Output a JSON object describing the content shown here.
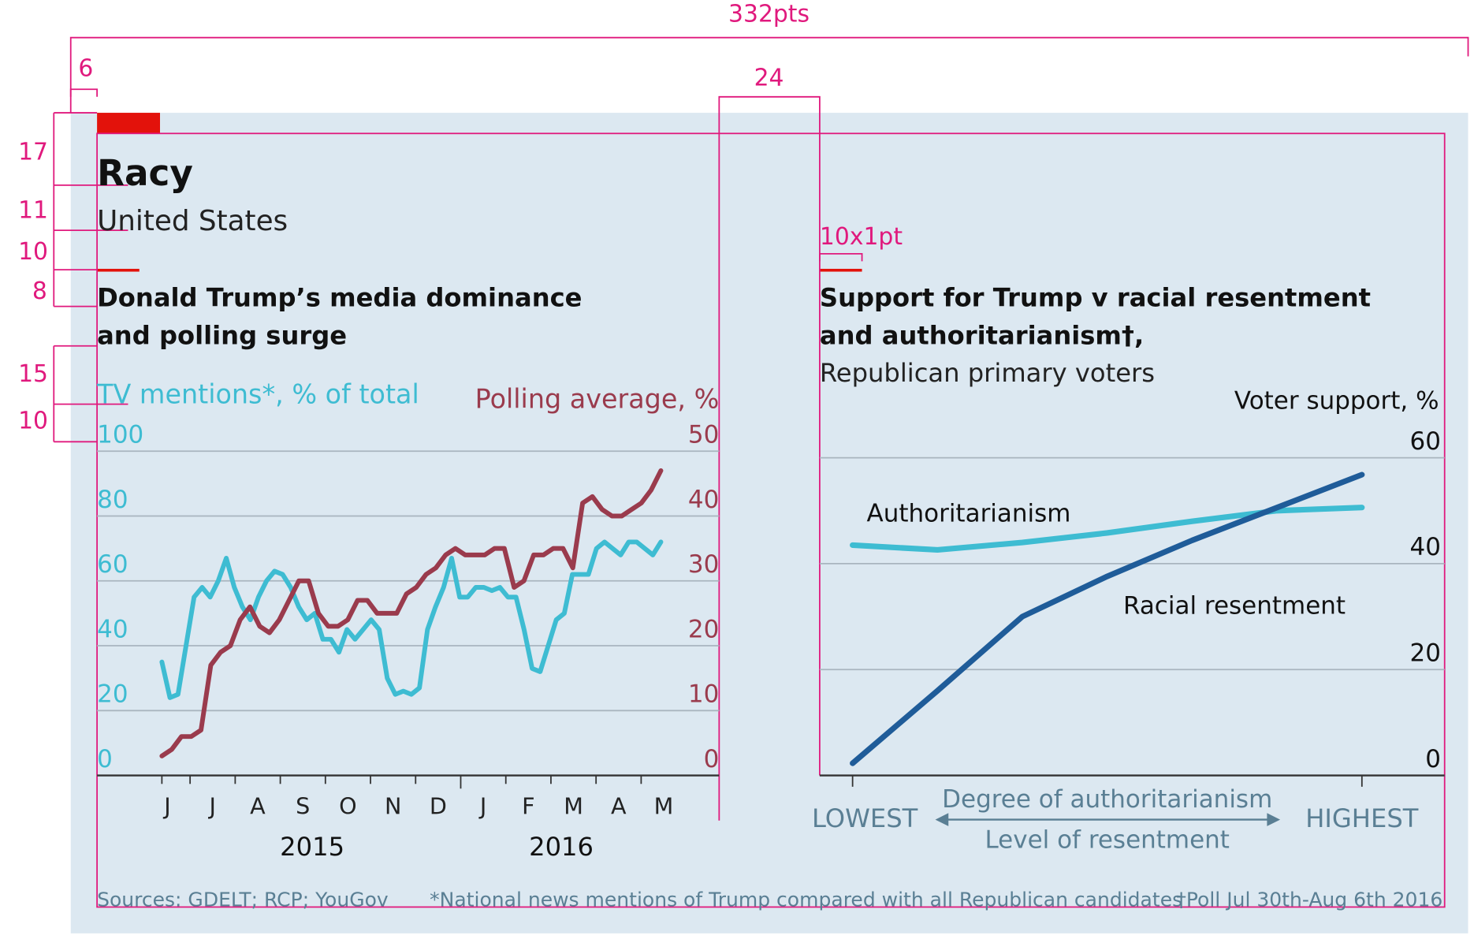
{
  "header": {
    "title": "Racy",
    "subtitle": "United States"
  },
  "annotations": [
    "332pts",
    "6",
    "24",
    "17",
    "11",
    "10",
    "8",
    "15",
    "10",
    "10x1pt"
  ],
  "footer": {
    "sources": "Sources: GDELT; RCP; YouGov",
    "note": "*National news mentions of Trump compared with all Republican candidates",
    "note2": "†Poll Jul 30th-Aug 6th 2016"
  },
  "chart_data": [
    {
      "type": "line",
      "title": [
        "Donald Trump’s media dominance",
        "and polling surge"
      ],
      "ylabel": "TV mentions*, % of total",
      "y2label": "Polling average, %",
      "months": [
        "J",
        "J",
        "A",
        "S",
        "O",
        "N",
        "D",
        "J",
        "F",
        "M",
        "A",
        "M"
      ],
      "years": [
        "2015",
        "2016"
      ],
      "ylim": [
        0,
        100
      ],
      "yticks": [
        0,
        20,
        40,
        60,
        80,
        100
      ],
      "y2lim": [
        0,
        50
      ],
      "y2ticks": [
        0,
        10,
        20,
        30,
        40,
        50
      ],
      "grid": true,
      "series": [
        {
          "name": "TV mentions",
          "color": "#3ebcd2",
          "values": [
            35,
            24,
            25,
            40,
            55,
            58,
            55,
            60,
            67,
            58,
            52,
            48,
            55,
            60,
            63,
            62,
            58,
            52,
            48,
            50,
            42,
            42,
            38,
            45,
            42,
            45,
            48,
            45,
            30,
            25,
            26,
            25,
            27,
            45,
            52,
            58,
            67,
            55,
            55,
            58,
            58,
            57,
            58,
            55,
            55,
            45,
            33,
            32,
            40,
            48,
            50,
            62,
            62,
            62,
            70,
            72,
            70,
            68,
            72,
            72,
            70,
            68,
            72
          ]
        },
        {
          "name": "Polling average",
          "color": "#9a3b4d",
          "axis": "y2",
          "values": [
            3,
            4,
            6,
            6,
            7,
            17,
            19,
            20,
            24,
            26,
            23,
            22,
            24,
            27,
            30,
            30,
            25,
            23,
            23,
            24,
            27,
            27,
            25,
            25,
            25,
            28,
            29,
            31,
            32,
            34,
            35,
            34,
            34,
            34,
            35,
            35,
            29,
            30,
            34,
            34,
            35,
            35,
            32,
            42,
            43,
            41,
            40,
            40,
            41,
            42,
            44,
            47
          ]
        }
      ]
    },
    {
      "type": "line",
      "title": [
        "Support for Trump v racial resentment",
        "and authoritarianism†,"
      ],
      "subtitle": "Republican primary voters",
      "y2label": "Voter support, %",
      "xlabel": "Degree of authoritarianism",
      "xlabel2": "Level of resentment",
      "categories": [
        "LOWEST",
        null,
        null,
        null,
        null,
        null,
        "HIGHEST"
      ],
      "y2lim": [
        0,
        60
      ],
      "y2ticks": [
        0,
        20,
        40,
        60
      ],
      "grid": true,
      "series": [
        {
          "name": "Authoritarianism",
          "color": "#3ebcd2",
          "axis": "y2",
          "values": [
            43.5,
            42.6,
            44,
            45.8,
            48,
            50,
            50.6
          ]
        },
        {
          "name": "Racial resentment",
          "color": "#1f5c99",
          "axis": "y2",
          "values": [
            2.3,
            16,
            30,
            37.6,
            44.4,
            50.6,
            56.8
          ]
        }
      ]
    }
  ]
}
